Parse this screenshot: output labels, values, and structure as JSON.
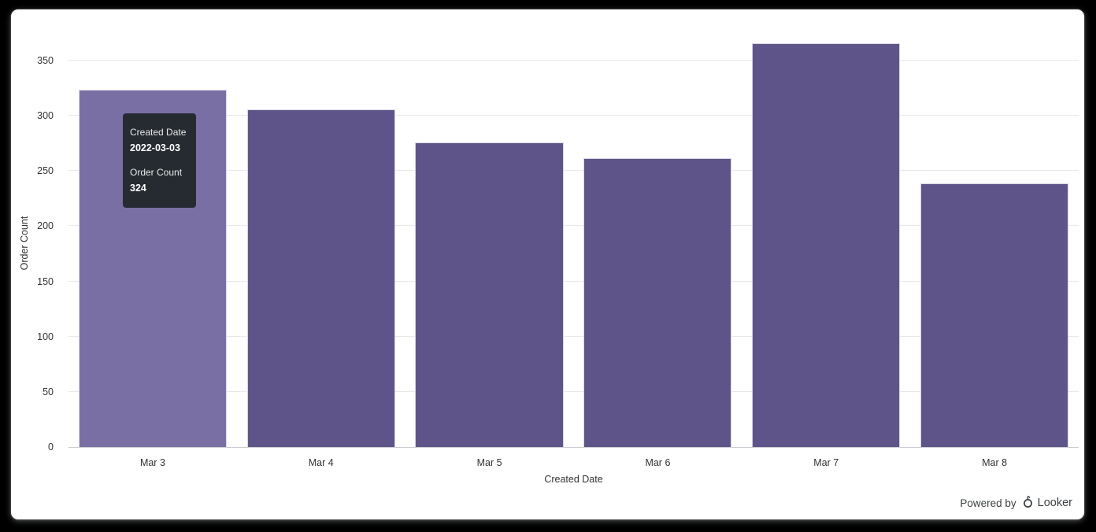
{
  "chart_data": {
    "type": "bar",
    "categories": [
      "Mar 3",
      "Mar 4",
      "Mar 5",
      "Mar 6",
      "Mar 7",
      "Mar 8"
    ],
    "values": [
      324,
      306,
      276,
      262,
      366,
      239
    ],
    "title": "",
    "xlabel": "Created Date",
    "ylabel": "Order Count",
    "ylim": [
      0,
      370
    ],
    "yticks": [
      0,
      50,
      100,
      150,
      200,
      250,
      300,
      350
    ],
    "grid": true,
    "legend": "none",
    "bar_color": "#5F548A",
    "bar_hover_color": "#7A6FA5",
    "hovered_index": 0
  },
  "tooltip": {
    "field1_label": "Created Date",
    "field1_value": "2022-03-03",
    "field2_label": "Order Count",
    "field2_value": "324",
    "bg_color": "#262B31"
  },
  "footer": {
    "powered_by": "Powered by",
    "brand": "Looker",
    "logo_icon": "looker-logo"
  }
}
